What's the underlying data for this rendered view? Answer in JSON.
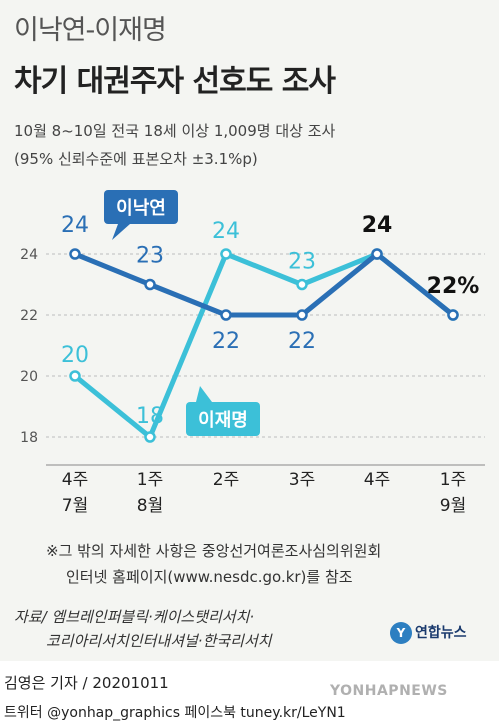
{
  "header": {
    "title_line1": "이낙연-이재명",
    "title_line2": "차기 대권주자 선호도 조사",
    "survey_info": "10월 8~10일 전국 18세 이상 1,009명 대상 조사",
    "margin_info": "(95% 신뢰수준에 표본오차 ±3.1%p)"
  },
  "colors": {
    "lee_nakyon": "#2a6fb5",
    "lee_jaemyung": "#3cc0d8",
    "panel_bg": "#f4f5f2"
  },
  "chart_data": {
    "type": "line",
    "categories": [
      "4주\n7월",
      "1주\n8월",
      "2주",
      "3주",
      "4주",
      "1주\n9월"
    ],
    "ylim": [
      17,
      26
    ],
    "yticks": [
      18,
      20,
      22,
      24
    ],
    "grid": true,
    "series": [
      {
        "name": "이낙연",
        "values": [
          24,
          23,
          22,
          22,
          24,
          22
        ],
        "labels": [
          "24",
          "23",
          "22",
          "22",
          "24",
          "22%"
        ]
      },
      {
        "name": "이재명",
        "values": [
          20,
          18,
          24,
          23,
          24,
          22
        ],
        "labels": [
          "20",
          "18",
          "24",
          "23",
          "",
          ""
        ]
      }
    ]
  },
  "footnote": {
    "line1": "※그 밖의 자세한 사항은 중앙선거여론조사심의위원회",
    "line2": "인터넷 홈페이지(www.nesdc.go.kr)를 참조"
  },
  "source": {
    "line1": "자료/ 엠브레인퍼블릭·케이스탯리서치·",
    "line2": "코리아리서치인터내셔널·한국리서치"
  },
  "logo_text": "연합뉴스",
  "byline": "김영은 기자 / 20201011",
  "social": "트위터 @yonhap_graphics  페이스북 tuney.kr/LeYN1",
  "watermark": "YONHAPNEWS"
}
